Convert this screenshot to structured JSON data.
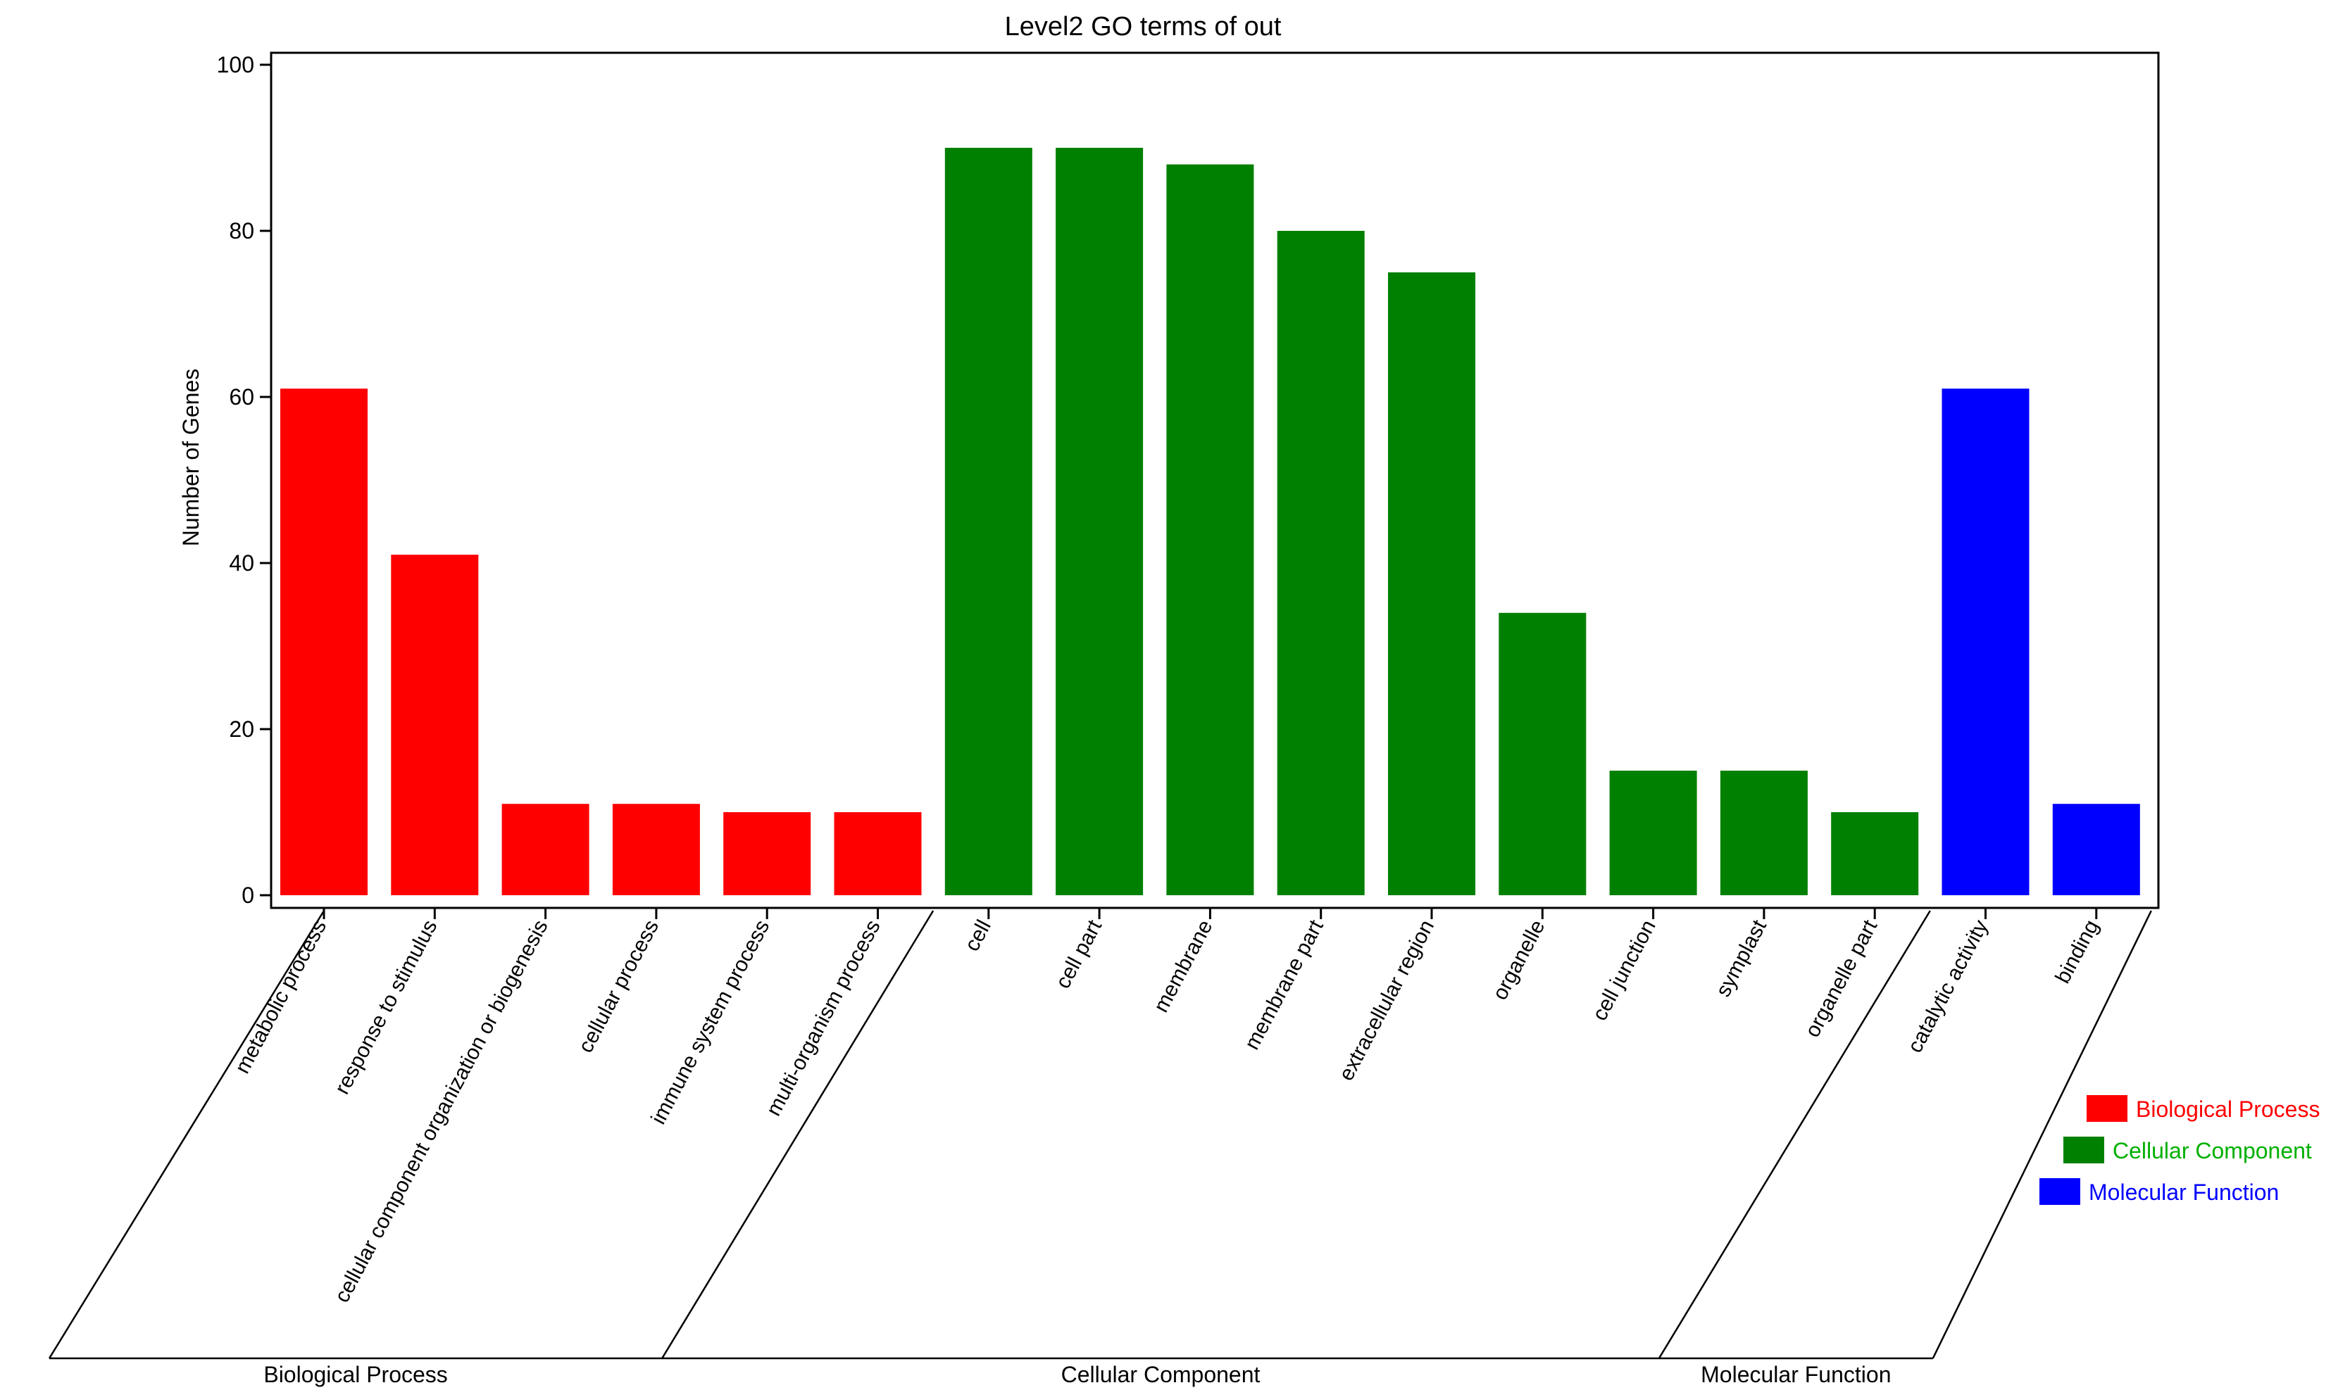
{
  "chart_data": {
    "type": "bar",
    "title": "Level2 GO terms of out",
    "xlabel": "",
    "ylabel": "Number of Genes",
    "ylim": [
      0,
      100
    ],
    "yticks": [
      0,
      20,
      40,
      60,
      80,
      100
    ],
    "grid": false,
    "legend_position": "right",
    "categories": [
      "metabolic process",
      "response to stimulus",
      "cellular component organization or biogenesis",
      "cellular process",
      "immune system process",
      "multi-organism process",
      "cell",
      "cell part",
      "membrane",
      "membrane part",
      "extracellular region",
      "organelle",
      "cell junction",
      "symplast",
      "organelle part",
      "catalytic activity",
      "binding"
    ],
    "values": [
      61,
      41,
      11,
      11,
      10,
      10,
      90,
      90,
      88,
      80,
      75,
      34,
      15,
      15,
      10,
      61,
      11
    ],
    "category_group": [
      0,
      0,
      0,
      0,
      0,
      0,
      1,
      1,
      1,
      1,
      1,
      1,
      1,
      1,
      1,
      2,
      2
    ],
    "groups": [
      {
        "name": "Biological Process",
        "color": "#ff0000",
        "legend_text_color": "#ff0000"
      },
      {
        "name": "Cellular Component",
        "color": "#008000",
        "legend_text_color": "#00b000"
      },
      {
        "name": "Molecular Function",
        "color": "#0000ff",
        "legend_text_color": "#0000ff"
      }
    ]
  }
}
